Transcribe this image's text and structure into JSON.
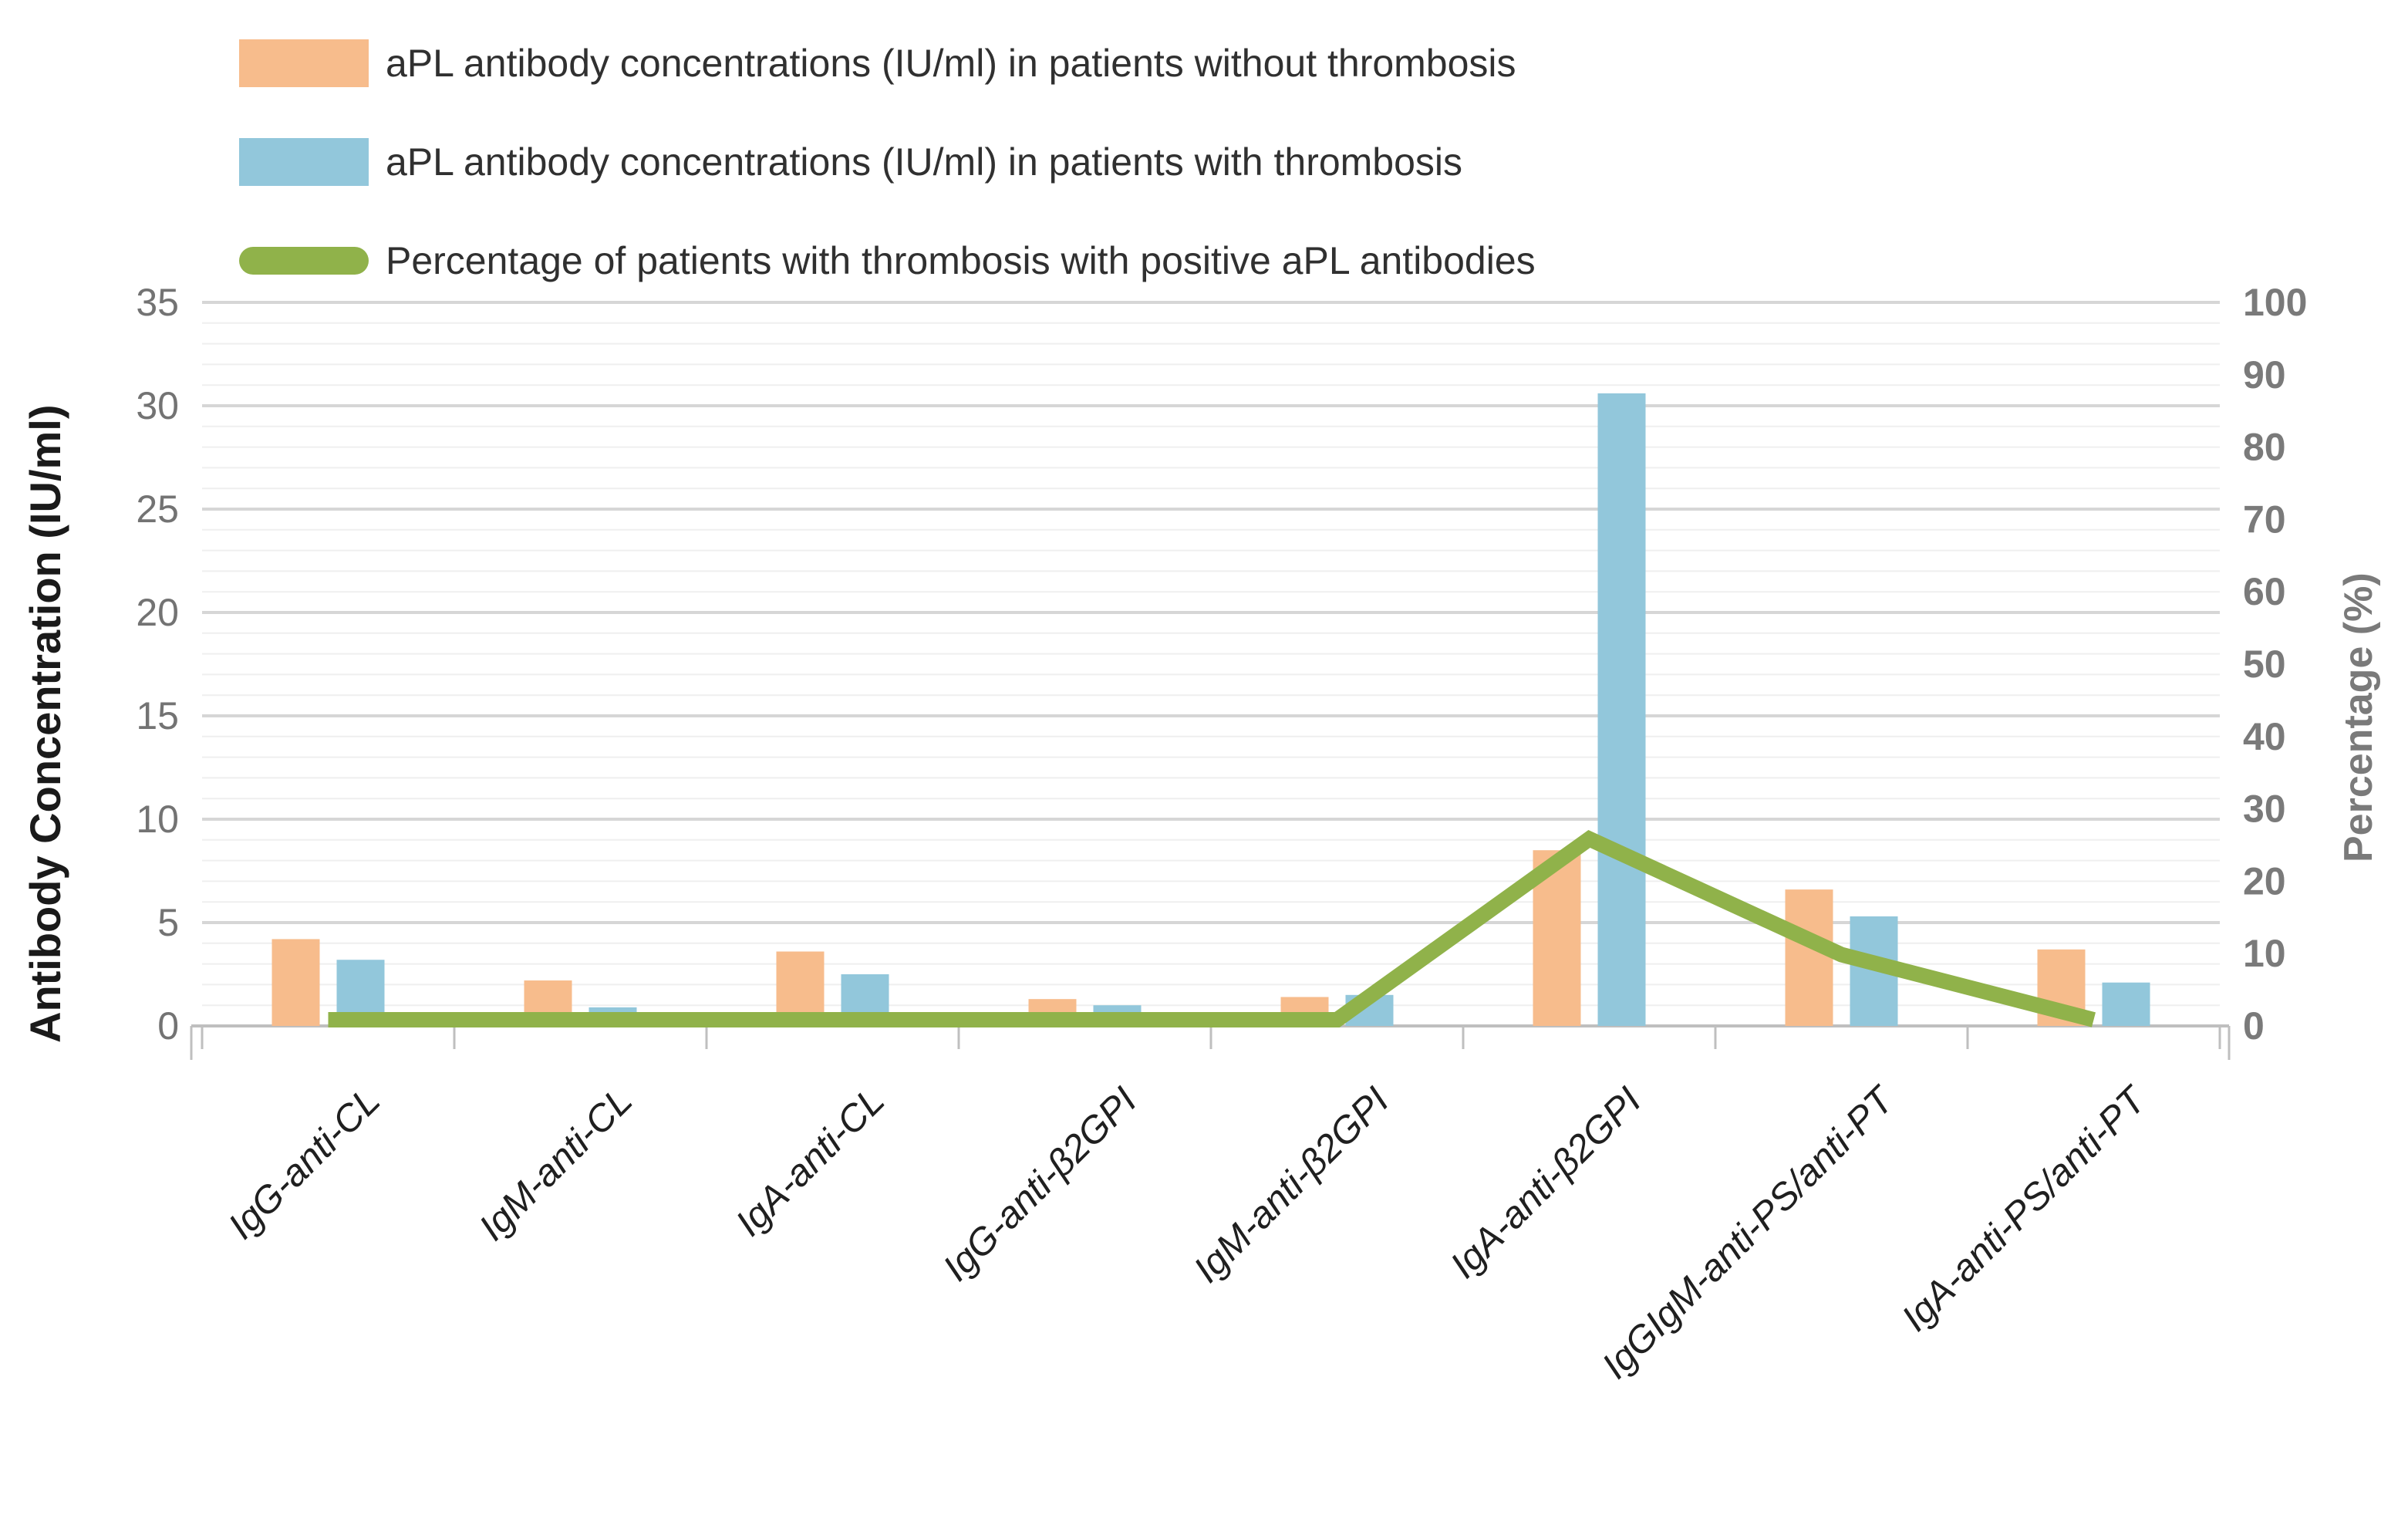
{
  "chart_data": {
    "type": "combo-bar-line-dual-axis",
    "title": "",
    "categories": [
      "IgG-anti-CL",
      "IgM-anti-CL",
      "IgA-anti-CL",
      "IgG-anti-β2GPI",
      "IgM-anti-β2GPI",
      "IgA-anti-β2GPI",
      "IgGIgM-anti-PS/anti-PT",
      "IgA-anti-PS/anti-PT"
    ],
    "series": [
      {
        "name": "aPL antibody concentrations (IU/ml) in patients without thrombosis",
        "type": "bar",
        "axis": "left",
        "color": "#F7BC8C",
        "values": [
          4.2,
          2.2,
          3.6,
          1.3,
          1.4,
          8.5,
          6.6,
          3.7
        ]
      },
      {
        "name": "aPL antibody concentrations (IU/ml) in patients with thrombosis",
        "type": "bar",
        "axis": "left",
        "color": "#92C7DB",
        "values": [
          3.2,
          0.9,
          2.5,
          1.0,
          1.5,
          30.6,
          5.3,
          2.1
        ]
      },
      {
        "name": "Percentage of patients with thrombosis with positive aPL antibodies",
        "type": "line",
        "axis": "right",
        "color": "#90B24A",
        "values": [
          0,
          0,
          0,
          0,
          0,
          25,
          9,
          0
        ]
      }
    ],
    "left_axis": {
      "title": "Antibody Concentration (IU/ml)",
      "ticks": [
        35,
        30,
        25,
        20,
        15,
        10,
        5,
        0
      ],
      "min": 0,
      "max": 35,
      "tick_color": "#737373",
      "title_color": "#1a1a1a"
    },
    "right_axis": {
      "title": "Percentage (%)",
      "ticks": [
        100,
        90,
        80,
        70,
        60,
        50,
        40,
        30,
        20,
        10,
        0
      ],
      "min": 0,
      "max": 100,
      "tick_color": "#7a7a7a",
      "title_color": "#7a7a7a"
    },
    "grid": {
      "minor_step_left_units": 1,
      "major_step_left_units": 5,
      "minor_color": "#efefef",
      "major_color": "#d6d6d6"
    },
    "axis_line_color": "#bfbfbf",
    "x_label_style": "italic, rotated 45 degrees",
    "legend_position": "top-left",
    "left_ylim": [
      0,
      35
    ],
    "right_ylim": [
      0,
      100
    ]
  }
}
